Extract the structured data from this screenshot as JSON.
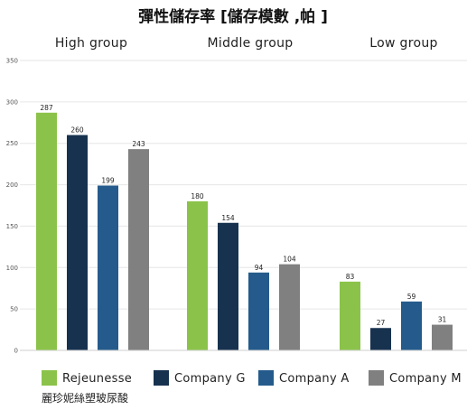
{
  "chart_data": {
    "type": "bar",
    "title": "彈性儲存率 [儲存模數 ,帕 ]",
    "groups": [
      "High group",
      "Middle group",
      "Low group"
    ],
    "series": [
      {
        "name": "Rejeunesse",
        "color": "#8bc34a",
        "values": [
          287,
          180,
          83
        ]
      },
      {
        "name": "Company G",
        "color": "#17324f",
        "values": [
          260,
          154,
          27
        ]
      },
      {
        "name": "Company A",
        "color": "#255b8c",
        "values": [
          199,
          94,
          59
        ]
      },
      {
        "name": "Company M",
        "color": "#808080",
        "values": [
          243,
          104,
          31
        ]
      }
    ],
    "yticks": [
      0,
      50,
      100,
      150,
      200,
      250,
      300,
      350
    ],
    "ylim": [
      0,
      350
    ],
    "grid": true,
    "legend_position": "bottom"
  },
  "footnote": "麗珍妮絲塑玻尿酸"
}
